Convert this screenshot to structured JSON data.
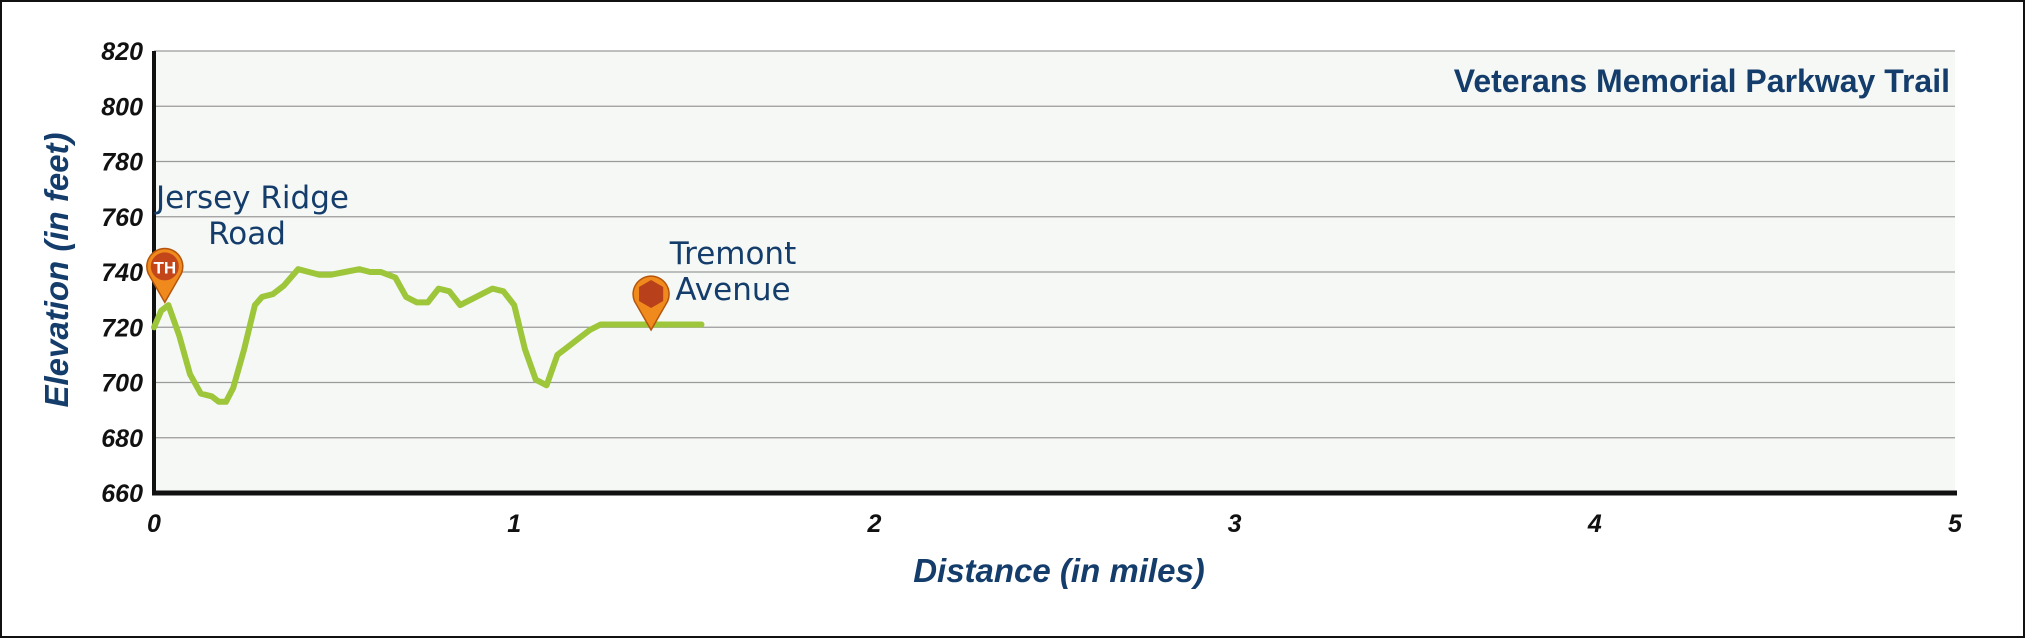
{
  "chart_data": {
    "type": "line",
    "title": "Veterans Memorial Parkway Trail",
    "xlabel": "Distance (in miles)",
    "ylabel": "Elevation (in feet)",
    "xlim": [
      0,
      5
    ],
    "ylim": [
      660,
      820
    ],
    "x_ticks": [
      "0",
      "1",
      "2",
      "3",
      "4",
      "5"
    ],
    "y_ticks": [
      "660",
      "680",
      "700",
      "720",
      "740",
      "760",
      "780",
      "800",
      "820"
    ],
    "grid": true,
    "line_color": "#9dc63b",
    "series": [
      {
        "x": [
          0.0,
          0.02,
          0.04,
          0.07,
          0.1,
          0.13,
          0.16,
          0.18,
          0.2,
          0.22,
          0.25,
          0.28,
          0.3,
          0.33,
          0.36,
          0.4,
          0.43,
          0.46,
          0.49,
          0.53,
          0.57,
          0.6,
          0.63,
          0.67,
          0.7,
          0.73,
          0.76,
          0.79,
          0.82,
          0.85,
          0.88,
          0.91,
          0.94,
          0.97,
          1.0,
          1.03,
          1.06,
          1.09,
          1.12,
          1.15,
          1.18,
          1.21,
          1.24,
          1.27,
          1.29,
          1.31,
          1.34,
          1.37,
          1.4,
          1.43,
          1.46,
          1.49,
          1.52
        ],
        "y": [
          720,
          726,
          728,
          717,
          703,
          696,
          695,
          693,
          693,
          698,
          712,
          728,
          731,
          732,
          735,
          741,
          740,
          739,
          739,
          740,
          741,
          740,
          740,
          738,
          731,
          729,
          729,
          734,
          733,
          728,
          730,
          732,
          734,
          733,
          728,
          712,
          701,
          699,
          710,
          713,
          716,
          719,
          721,
          721,
          721,
          721,
          721,
          721,
          721,
          721,
          721,
          721,
          721
        ]
      }
    ],
    "annotations": [
      {
        "text_lines": [
          "Jersey Ridge",
          "Road"
        ],
        "x": 0.03,
        "y": 729,
        "marker": "trailhead-pin",
        "marker_label": "TH"
      },
      {
        "text_lines": [
          "Tremont",
          "Avenue"
        ],
        "x": 1.38,
        "y": 719,
        "marker": "endpoint-pin",
        "marker_label": ""
      }
    ]
  }
}
